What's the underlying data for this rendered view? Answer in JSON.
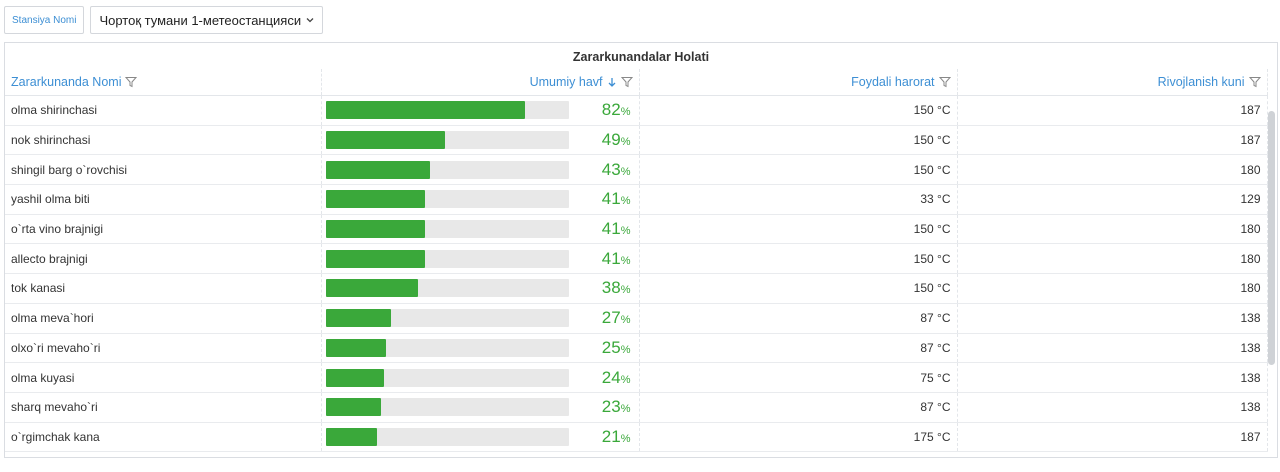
{
  "filter": {
    "station_label": "Stansiya Nomi",
    "station_value": "Чортоқ тумани 1-метеостанцияси"
  },
  "panel": {
    "title": "Zararkunandalar Holati",
    "columns": {
      "name": "Zararkunanda Nomi",
      "risk": "Umumiy havf",
      "temp": "Foydali harorat",
      "days": "Rivojlanish kuni"
    }
  },
  "colors": {
    "accent": "#3d8fd4",
    "bar": "#3aa83a",
    "bar_bg": "#e8e8e8"
  },
  "rows": [
    {
      "name": "olma shirinchasi",
      "risk": 82,
      "risk_text": "82",
      "temp": "150 °C",
      "days": "187"
    },
    {
      "name": "nok shirinchasi",
      "risk": 49,
      "risk_text": "49",
      "temp": "150 °C",
      "days": "187"
    },
    {
      "name": "shingil barg o`rovchisi",
      "risk": 43,
      "risk_text": "43",
      "temp": "150 °C",
      "days": "180"
    },
    {
      "name": "yashil olma biti",
      "risk": 41,
      "risk_text": "41",
      "temp": "33 °C",
      "days": "129"
    },
    {
      "name": "o`rta vino brajnigi",
      "risk": 41,
      "risk_text": "41",
      "temp": "150 °C",
      "days": "180"
    },
    {
      "name": "allecto brajnigi",
      "risk": 41,
      "risk_text": "41",
      "temp": "150 °C",
      "days": "180"
    },
    {
      "name": "tok kanasi",
      "risk": 38,
      "risk_text": "38",
      "temp": "150 °C",
      "days": "180"
    },
    {
      "name": "olma meva`hori",
      "risk": 27,
      "risk_text": "27",
      "temp": "87 °C",
      "days": "138"
    },
    {
      "name": "olxo`ri mevaho`ri",
      "risk": 25,
      "risk_text": "25",
      "temp": "87 °C",
      "days": "138"
    },
    {
      "name": "olma kuyasi",
      "risk": 24,
      "risk_text": "24",
      "temp": "75 °C",
      "days": "138"
    },
    {
      "name": "sharq mevaho`ri",
      "risk": 23,
      "risk_text": "23",
      "temp": "87 °C",
      "days": "138"
    },
    {
      "name": "o`rgimchak kana",
      "risk": 21,
      "risk_text": "21",
      "temp": "175 °C",
      "days": "187"
    }
  ],
  "percent_sign": "%"
}
